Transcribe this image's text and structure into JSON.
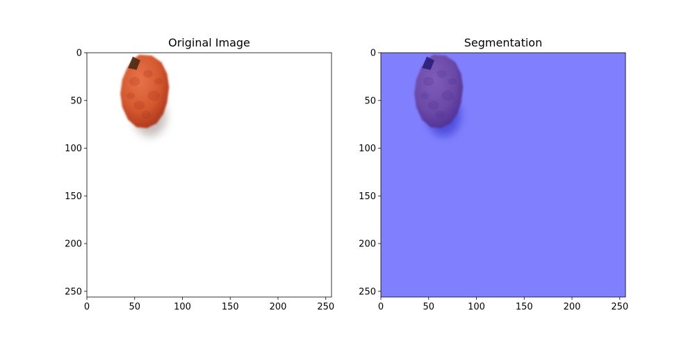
{
  "figure": {
    "background": "#ffffff"
  },
  "chart_data": [
    {
      "type": "image",
      "title": "Original Image",
      "xlabel": "",
      "ylabel": "",
      "xlim": [
        0,
        256
      ],
      "ylim": [
        256,
        0
      ],
      "xticks": [
        0,
        50,
        100,
        150,
        200,
        250
      ],
      "yticks": [
        0,
        50,
        100,
        150,
        200,
        250
      ],
      "content": "pomegranate-photo",
      "colors": {
        "background": "#ffffff",
        "fruit": "#d4582e",
        "fruit_dark": "#a8341d",
        "stem": "#4a2a14",
        "shadow": "#9a8f8a"
      }
    },
    {
      "type": "image",
      "title": "Segmentation",
      "xlabel": "",
      "ylabel": "",
      "xlim": [
        0,
        256
      ],
      "ylim": [
        256,
        0
      ],
      "xticks": [
        0,
        50,
        100,
        150,
        200,
        250
      ],
      "yticks": [
        0,
        50,
        100,
        150,
        200,
        250
      ],
      "content": "pomegranate-photo-with-blue-mask-overlay",
      "colors": {
        "overlay": "#8080ff",
        "fruit": "#6c4aa8",
        "fruit_dark": "#4e2f94",
        "stem": "#2a1f7a",
        "shadow": "#3a3ad0"
      }
    }
  ]
}
